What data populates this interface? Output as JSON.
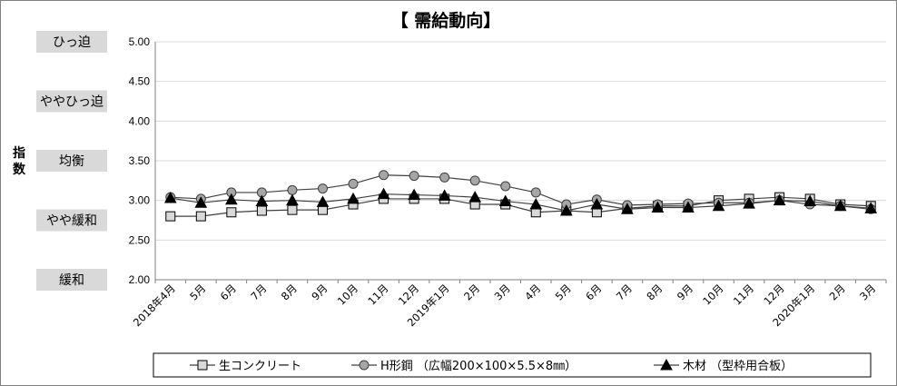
{
  "chart_data": {
    "type": "line",
    "title": "【 需給動向】",
    "ylabel": "指数",
    "ylim": [
      2.0,
      5.0
    ],
    "yticks": [
      "5.00",
      "4.50",
      "4.00",
      "3.50",
      "3.00",
      "2.50",
      "2.00"
    ],
    "band_labels": [
      {
        "label": "ひっ迫",
        "value": 5.0
      },
      {
        "label": "ややひっ迫",
        "value": 4.25
      },
      {
        "label": "均衡",
        "value": 3.5
      },
      {
        "label": "やや緩和",
        "value": 2.75
      },
      {
        "label": "緩和",
        "value": 2.0
      }
    ],
    "categories": [
      "2018年4月",
      "5月",
      "6月",
      "7月",
      "8月",
      "9月",
      "10月",
      "11月",
      "12月",
      "2019年1月",
      "2月",
      "3月",
      "4月",
      "5月",
      "6月",
      "7月",
      "8月",
      "9月",
      "10月",
      "11月",
      "12月",
      "2020年1月",
      "2月",
      "3月"
    ],
    "series": [
      {
        "name": "生コンクリート",
        "marker": "square",
        "color": "#000000",
        "fill": "#d9d9d9",
        "values": [
          2.8,
          2.8,
          2.85,
          2.87,
          2.88,
          2.88,
          2.95,
          3.02,
          3.02,
          3.02,
          2.95,
          2.95,
          2.85,
          2.87,
          2.85,
          2.9,
          2.93,
          2.93,
          3.0,
          3.02,
          3.04,
          3.02,
          2.95,
          2.93
        ]
      },
      {
        "name": "H形鋼 （広幅200×100×5.5×8㎜）",
        "marker": "circle",
        "color": "#000000",
        "fill": "#a6a6a6",
        "values": [
          3.04,
          3.02,
          3.1,
          3.1,
          3.13,
          3.15,
          3.21,
          3.32,
          3.31,
          3.29,
          3.25,
          3.18,
          3.1,
          2.95,
          3.01,
          2.94,
          2.95,
          2.96,
          2.97,
          2.97,
          3.0,
          2.95,
          2.93,
          2.89
        ]
      },
      {
        "name": "木材 （型枠用合板）",
        "marker": "triangle",
        "color": "#000000",
        "fill": "#000000",
        "values": [
          3.03,
          2.97,
          3.01,
          2.99,
          3.0,
          2.98,
          3.02,
          3.08,
          3.07,
          3.06,
          3.04,
          2.99,
          2.95,
          2.87,
          2.95,
          2.89,
          2.91,
          2.91,
          2.93,
          2.96,
          3.0,
          2.99,
          2.93,
          2.9
        ]
      }
    ],
    "grid": true,
    "legend_position": "bottom"
  }
}
